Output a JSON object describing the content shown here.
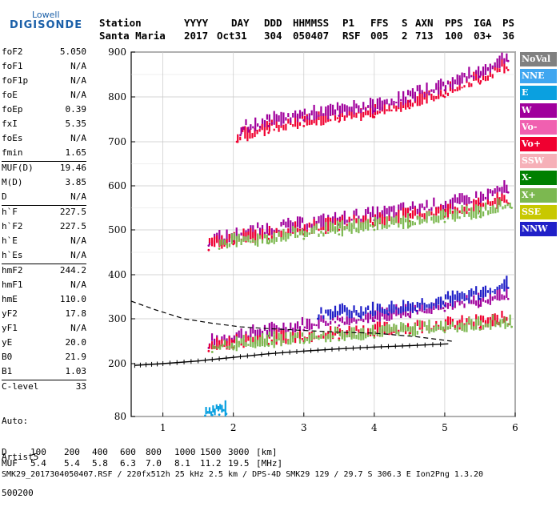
{
  "logo": {
    "top": "Lowell",
    "main": "DIGISONDE"
  },
  "header": {
    "labels": [
      "Station",
      "YYYY",
      "DAY",
      "DDD",
      "HHMMSS",
      "P1",
      "FFS",
      "S",
      "AXN",
      "PPS",
      "IGA",
      "PS"
    ],
    "values": [
      "Santa Maria",
      "2017",
      "Oct31",
      "304",
      "050407",
      "RSF",
      "005",
      "2",
      "713",
      "100",
      "03+",
      "36"
    ]
  },
  "params": [
    {
      "label": "foF2",
      "value": "5.050"
    },
    {
      "label": "foF1",
      "value": "N/A"
    },
    {
      "label": "foF1p",
      "value": "N/A"
    },
    {
      "label": "foE",
      "value": "N/A"
    },
    {
      "label": "foEp",
      "value": "0.39"
    },
    {
      "label": "fxI",
      "value": "5.35"
    },
    {
      "label": "foEs",
      "value": "N/A"
    },
    {
      "label": "fmin",
      "value": "1.65"
    },
    {
      "label": "MUF(D)",
      "value": "19.46"
    },
    {
      "label": "M(D)",
      "value": "3.85"
    },
    {
      "label": "D",
      "value": "N/A"
    },
    {
      "label": "h`F",
      "value": "227.5"
    },
    {
      "label": "h`F2",
      "value": "227.5"
    },
    {
      "label": "h`E",
      "value": "N/A"
    },
    {
      "label": "h`Es",
      "value": "N/A"
    },
    {
      "label": "hmF2",
      "value": "244.2"
    },
    {
      "label": "hmF1",
      "value": "N/A"
    },
    {
      "label": "hmE",
      "value": "110.0"
    },
    {
      "label": "yF2",
      "value": "17.8"
    },
    {
      "label": "yF1",
      "value": "N/A"
    },
    {
      "label": "yE",
      "value": "20.0"
    },
    {
      "label": "B0",
      "value": "21.9"
    },
    {
      "label": "B1",
      "value": "1.03"
    },
    {
      "label": "C-level",
      "value": "33"
    }
  ],
  "autoscaling": {
    "line1": "Auto:",
    "line2": "Artist5",
    "line3": "500200"
  },
  "legend": [
    {
      "label": "NoVal",
      "color": "#808080"
    },
    {
      "label": "NNE",
      "color": "#3fa6f0"
    },
    {
      "label": "E",
      "color": "#0aa0e0"
    },
    {
      "label": "W",
      "color": "#a0009c"
    },
    {
      "label": "Vo-",
      "color": "#f060b0"
    },
    {
      "label": "Vo+",
      "color": "#f00030"
    },
    {
      "label": "SSW",
      "color": "#f6b0b8"
    },
    {
      "label": "X-",
      "color": "#008000"
    },
    {
      "label": "X+",
      "color": "#7cb850"
    },
    {
      "label": "SSE",
      "color": "#c8c800"
    },
    {
      "label": "NNW",
      "color": "#2020c8"
    }
  ],
  "footer": {
    "d_label": "D",
    "d_values": [
      "100",
      "200",
      "400",
      "600",
      "800",
      "1000",
      "1500",
      "3000",
      "[km]"
    ],
    "muf_label": "MUF",
    "muf_values": [
      "5.4",
      "5.4",
      "5.8",
      "6.3",
      "7.0",
      "8.1",
      "11.2",
      "19.5",
      "[MHz]"
    ],
    "info": "SMK29_2017304050407.RSF / 220fx512h 25 kHz 2.5 km / DPS-4D SMK29 129 / 29.7 S 306.3 E Ion2Png 1.3.20"
  },
  "chart_data": {
    "type": "scatter",
    "x_ticks": [
      1,
      2,
      3,
      4,
      5,
      6
    ],
    "y_ticks": [
      80,
      200,
      300,
      400,
      500,
      600,
      700,
      800,
      900
    ],
    "xlim": [
      0.55,
      6.0
    ],
    "ylim": [
      80,
      900
    ],
    "grid": true,
    "legend_placement": "right",
    "traces": [
      {
        "name": "E",
        "color": "#0aa0e0",
        "x": [
          1.6,
          1.7,
          1.8,
          1.9
        ],
        "y": [
          82,
          83,
          84,
          86
        ]
      },
      {
        "name": "W",
        "color": "#a0009c",
        "x": [
          1.65,
          2.0,
          2.5,
          3.0,
          3.5,
          4.0,
          4.5,
          5.0,
          5.5,
          5.9
        ],
        "y": [
          235,
          250,
          262,
          275,
          285,
          295,
          305,
          318,
          330,
          345
        ]
      },
      {
        "name": "Vo+",
        "color": "#f00030",
        "x": [
          1.65,
          2.0,
          2.5,
          3.0,
          3.5,
          4.0,
          4.5,
          5.0,
          5.5,
          5.9
        ],
        "y": [
          228,
          236,
          244,
          250,
          256,
          262,
          268,
          274,
          280,
          288
        ]
      },
      {
        "name": "X+",
        "color": "#7cb850",
        "x": [
          1.7,
          2.0,
          2.5,
          3.0,
          3.5,
          4.0,
          4.5,
          5.0,
          5.5,
          5.95
        ],
        "y": [
          226,
          232,
          240,
          246,
          252,
          258,
          264,
          270,
          276,
          282
        ]
      },
      {
        "name": "W",
        "color": "#a0009c",
        "x": [
          1.65,
          2.0,
          2.5,
          3.0,
          3.5,
          4.0,
          4.5,
          5.0,
          5.5,
          5.9
        ],
        "y": [
          465,
          475,
          490,
          500,
          512,
          522,
          534,
          545,
          560,
          585
        ]
      },
      {
        "name": "Vo+",
        "color": "#f00030",
        "x": [
          1.65,
          2.0,
          2.5,
          3.0,
          3.5,
          4.0,
          4.5,
          5.0,
          5.5,
          5.9
        ],
        "y": [
          455,
          468,
          480,
          490,
          500,
          510,
          520,
          530,
          542,
          560
        ]
      },
      {
        "name": "X+",
        "color": "#7cb850",
        "x": [
          1.8,
          2.5,
          3.0,
          3.5,
          4.0,
          4.5,
          5.0,
          5.5,
          5.95
        ],
        "y": [
          458,
          470,
          480,
          490,
          500,
          508,
          518,
          530,
          550
        ]
      },
      {
        "name": "Vo+",
        "color": "#f00030",
        "x": [
          2.05,
          2.5,
          3.0,
          3.5,
          4.0,
          4.5,
          5.0,
          5.5,
          5.9
        ],
        "y": [
          700,
          720,
          735,
          745,
          755,
          775,
          800,
          830,
          860
        ]
      },
      {
        "name": "W",
        "color": "#a0009c",
        "x": [
          2.1,
          2.5,
          3.0,
          3.5,
          4.0,
          4.5,
          5.0,
          5.5,
          5.9
        ],
        "y": [
          715,
          735,
          748,
          758,
          768,
          790,
          815,
          845,
          880
        ]
      },
      {
        "name": "NNW",
        "color": "#2020c8",
        "x": [
          3.2,
          3.8,
          4.2,
          4.6,
          5.0,
          5.5,
          5.9
        ],
        "y": [
          300,
          305,
          310,
          318,
          330,
          345,
          370
        ]
      }
    ],
    "profile": {
      "x": [
        0.6,
        1.0,
        1.5,
        2.0,
        2.5,
        3.0,
        3.5,
        4.0,
        4.5,
        5.05
      ],
      "y": [
        196,
        200,
        206,
        214,
        222,
        228,
        233,
        237,
        240,
        244
      ]
    },
    "dashed_curve": {
      "x": [
        0.55,
        0.9,
        1.3,
        1.7,
        2.1,
        2.5,
        3.0,
        3.5,
        4.0,
        4.6,
        5.1
      ],
      "y": [
        340,
        320,
        300,
        290,
        282,
        278,
        274,
        270,
        268,
        260,
        250
      ]
    }
  }
}
